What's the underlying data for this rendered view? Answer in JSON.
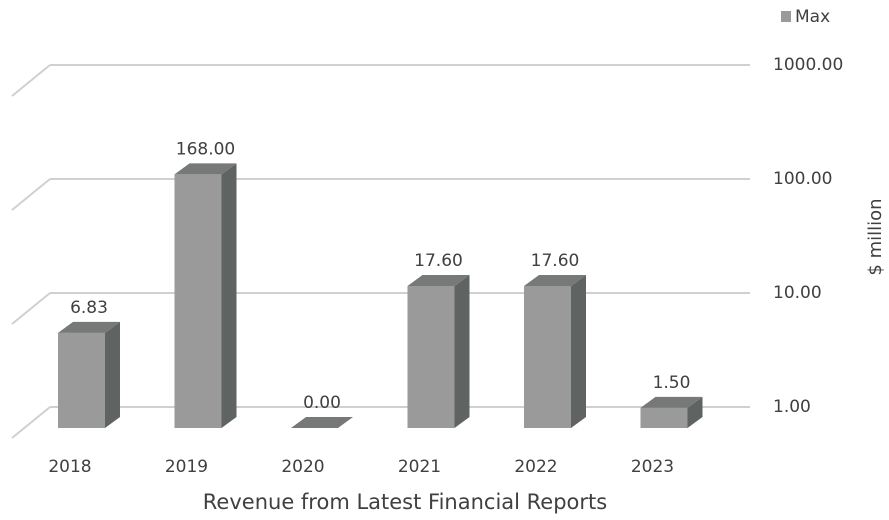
{
  "chart_data": {
    "type": "bar3d",
    "x_label": "Revenue from Latest Financial Reports",
    "y_label": "$ million",
    "categories": [
      "2018",
      "2019",
      "2020",
      "2021",
      "2022",
      "2023"
    ],
    "series": [
      {
        "name": "Max",
        "color": "#9a9a9a",
        "values": [
          6.83,
          168,
          0,
          17.6,
          17.6,
          1.5
        ],
        "value_labels": [
          "6.83",
          "168.00",
          "0.00",
          "17.60",
          "17.60",
          "1.50"
        ]
      }
    ],
    "ylim": [
      1,
      1000
    ],
    "yticks": [
      {
        "value": 1,
        "label": "1.00"
      },
      {
        "value": 10,
        "label": "10.00"
      },
      {
        "value": 100,
        "label": "100.00"
      },
      {
        "value": 1000,
        "label": "1000.00"
      }
    ],
    "log_scale": true,
    "grid": true,
    "legend": "top-right"
  }
}
